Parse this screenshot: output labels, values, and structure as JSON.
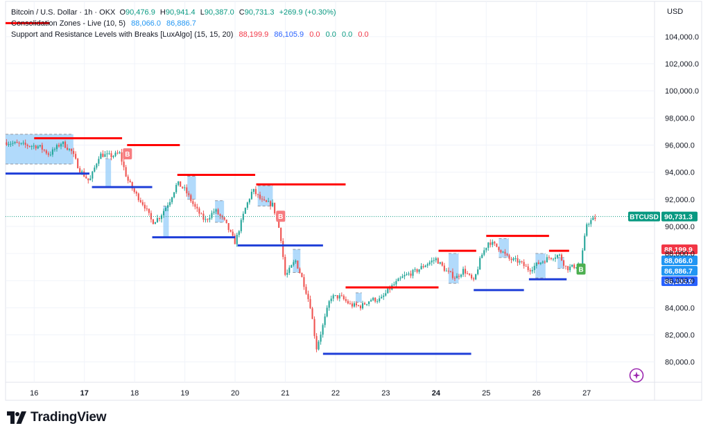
{
  "legend": {
    "symbol": "Bitcoin / U.S. Dollar · 1h · OKX",
    "open_label": "O",
    "open": "90,476.9",
    "high_label": "H",
    "high": "90,941.4",
    "low_label": "L",
    "low": "90,387.0",
    "close_label": "C",
    "close": "90,731.3",
    "change": "+269.9 (+0.30%)",
    "ind1_name": "Consolidation Zones - Live (10, 5)",
    "ind1_v1": "88,066.0",
    "ind1_v2": "86,886.7",
    "ind2_name": "Support and Resistance Levels with Breaks [LuxAlgo] (15, 15, 20)",
    "ind2_v1": "88,199.9",
    "ind2_v2": "86,105.9",
    "ind2_v3": "0.0",
    "ind2_v4": "0.0",
    "ind2_v5": "0.0",
    "ind2_v6": "0.0"
  },
  "currency": "USD",
  "brand": {
    "name": "TradingView"
  },
  "colors": {
    "up": "#26a69a",
    "down": "#ef5350",
    "resistance": "#ff0000",
    "support": "#1e3ed8",
    "zone": "#90caf9",
    "grid": "#f0f3fa",
    "axis_text": "#131722",
    "tag_ticker": "#089981",
    "tag_red": "#f23645",
    "tag_blue": "#2962ff",
    "tag_lightblue": "#2196f3"
  },
  "chart_data": {
    "type": "candlestick",
    "ylim": [
      78500,
      106600
    ],
    "y_ticks": [
      80000,
      82000,
      84000,
      86000,
      88000,
      90000,
      92000,
      94000,
      96000,
      98000,
      100000,
      102000,
      104000
    ],
    "y_tick_labels": [
      "80,000.0",
      "82,000.0",
      "84,000.0",
      "86,000.0",
      "88,000.0",
      "90,000.0",
      "92,000.0",
      "94,000.0",
      "96,000.0",
      "98,000.0",
      "100,000.0",
      "102,000.0",
      "104,000.0"
    ],
    "x_ticks": [
      {
        "label": "16",
        "day": 16,
        "bold": false
      },
      {
        "label": "17",
        "day": 17,
        "bold": true
      },
      {
        "label": "18",
        "day": 18,
        "bold": false
      },
      {
        "label": "19",
        "day": 19,
        "bold": false
      },
      {
        "label": "20",
        "day": 20,
        "bold": false
      },
      {
        "label": "21",
        "day": 21,
        "bold": false
      },
      {
        "label": "22",
        "day": 22,
        "bold": false
      },
      {
        "label": "23",
        "day": 23,
        "bold": false
      },
      {
        "label": "24",
        "day": 24,
        "bold": true
      },
      {
        "label": "25",
        "day": 25,
        "bold": false
      },
      {
        "label": "26",
        "day": 26,
        "bold": false
      },
      {
        "label": "27",
        "day": 27,
        "bold": false
      }
    ],
    "xlim_days": [
      15.43,
      28.35
    ],
    "price_path": [
      [
        15.45,
        96200
      ],
      [
        15.8,
        96000
      ],
      [
        16.1,
        95900
      ],
      [
        16.3,
        95300
      ],
      [
        16.55,
        96200
      ],
      [
        16.75,
        95500
      ],
      [
        16.9,
        94200
      ],
      [
        17.1,
        93300
      ],
      [
        17.3,
        95300
      ],
      [
        17.55,
        95200
      ],
      [
        17.7,
        95400
      ],
      [
        17.85,
        93500
      ],
      [
        18.0,
        92500
      ],
      [
        18.2,
        91500
      ],
      [
        18.35,
        90300
      ],
      [
        18.5,
        90700
      ],
      [
        18.7,
        91900
      ],
      [
        18.85,
        93200
      ],
      [
        19.0,
        92700
      ],
      [
        19.2,
        91400
      ],
      [
        19.4,
        90400
      ],
      [
        19.6,
        91200
      ],
      [
        19.8,
        90300
      ],
      [
        20.0,
        88800
      ],
      [
        20.2,
        91300
      ],
      [
        20.35,
        92700
      ],
      [
        20.55,
        91800
      ],
      [
        20.75,
        91600
      ],
      [
        20.9,
        89500
      ],
      [
        21.0,
        86300
      ],
      [
        21.2,
        87500
      ],
      [
        21.35,
        86000
      ],
      [
        21.5,
        84100
      ],
      [
        21.62,
        81000
      ],
      [
        21.75,
        82700
      ],
      [
        21.9,
        84800
      ],
      [
        22.1,
        84800
      ],
      [
        22.3,
        84200
      ],
      [
        22.5,
        84100
      ],
      [
        22.7,
        84600
      ],
      [
        22.9,
        84600
      ],
      [
        23.1,
        85500
      ],
      [
        23.35,
        86300
      ],
      [
        23.6,
        86700
      ],
      [
        23.8,
        87200
      ],
      [
        24.0,
        87600
      ],
      [
        24.2,
        86700
      ],
      [
        24.4,
        86200
      ],
      [
        24.55,
        86800
      ],
      [
        24.75,
        85900
      ],
      [
        24.9,
        87800
      ],
      [
        25.05,
        88900
      ],
      [
        25.25,
        88400
      ],
      [
        25.45,
        87600
      ],
      [
        25.65,
        87400
      ],
      [
        25.85,
        86800
      ],
      [
        26.05,
        87300
      ],
      [
        26.25,
        87700
      ],
      [
        26.45,
        87900
      ],
      [
        26.6,
        86900
      ],
      [
        26.8,
        87100
      ],
      [
        26.88,
        87100
      ],
      [
        27.0,
        90200
      ],
      [
        27.2,
        90700
      ]
    ],
    "candle_step_days": 0.0417,
    "last_price": 90731.3,
    "last_price_label": "90,731.3",
    "ticker_tag": "BTCUSD",
    "price_tags": [
      {
        "value": 88199.9,
        "label": "88,199.9",
        "kind": "red"
      },
      {
        "value": 88066.0,
        "label": "88,066.0",
        "kind": "lightblue"
      },
      {
        "value": 86886.7,
        "label": "86,886.7",
        "kind": "lightblue"
      },
      {
        "value": 86105.9,
        "label": "86,105.9",
        "kind": "blue"
      }
    ],
    "resistance_levels": [
      {
        "x1": 15.43,
        "x2": 16.3,
        "y": 105000
      },
      {
        "x1": 16.0,
        "x2": 17.75,
        "y": 96500
      },
      {
        "x1": 17.85,
        "x2": 18.9,
        "y": 96000
      },
      {
        "x1": 18.85,
        "x2": 20.4,
        "y": 93800
      },
      {
        "x1": 20.42,
        "x2": 22.2,
        "y": 93100
      },
      {
        "x1": 22.2,
        "x2": 24.05,
        "y": 85500
      },
      {
        "x1": 24.05,
        "x2": 24.8,
        "y": 88200
      },
      {
        "x1": 25.0,
        "x2": 26.25,
        "y": 89300
      },
      {
        "x1": 26.25,
        "x2": 26.65,
        "y": 88200
      }
    ],
    "support_levels": [
      {
        "x1": 15.43,
        "x2": 17.1,
        "y": 93900
      },
      {
        "x1": 17.15,
        "x2": 18.35,
        "y": 92900
      },
      {
        "x1": 18.35,
        "x2": 20.0,
        "y": 89200
      },
      {
        "x1": 20.05,
        "x2": 21.75,
        "y": 88600
      },
      {
        "x1": 21.75,
        "x2": 24.7,
        "y": 80600
      },
      {
        "x1": 24.75,
        "x2": 25.75,
        "y": 85300
      },
      {
        "x1": 25.85,
        "x2": 26.6,
        "y": 86100
      }
    ],
    "consolidation_zones": [
      {
        "x1": 15.43,
        "x2": 16.78,
        "y1": 94600,
        "y2": 96800
      },
      {
        "x1": 17.42,
        "x2": 17.53,
        "y1": 92900,
        "y2": 95000
      },
      {
        "x1": 18.57,
        "x2": 18.68,
        "y1": 89200,
        "y2": 91500
      },
      {
        "x1": 19.05,
        "x2": 19.22,
        "y1": 92000,
        "y2": 93700
      },
      {
        "x1": 19.6,
        "x2": 19.78,
        "y1": 90300,
        "y2": 91900
      },
      {
        "x1": 20.45,
        "x2": 20.75,
        "y1": 91500,
        "y2": 93000
      },
      {
        "x1": 21.15,
        "x2": 21.3,
        "y1": 86600,
        "y2": 88300
      },
      {
        "x1": 22.4,
        "x2": 22.52,
        "y1": 84400,
        "y2": 85100
      },
      {
        "x1": 24.25,
        "x2": 24.45,
        "y1": 85800,
        "y2": 88000
      },
      {
        "x1": 25.25,
        "x2": 25.45,
        "y1": 87700,
        "y2": 89100
      },
      {
        "x1": 25.98,
        "x2": 26.18,
        "y1": 86200,
        "y2": 88000
      },
      {
        "x1": 26.42,
        "x2": 26.55,
        "y1": 86900,
        "y2": 87700
      }
    ],
    "break_labels": [
      {
        "text": "B",
        "day": 17.85,
        "price": 95300,
        "kind": "down"
      },
      {
        "text": "B",
        "day": 20.9,
        "price": 90700,
        "kind": "down"
      },
      {
        "text": "B",
        "day": 26.88,
        "price": 86800,
        "kind": "up"
      }
    ]
  }
}
